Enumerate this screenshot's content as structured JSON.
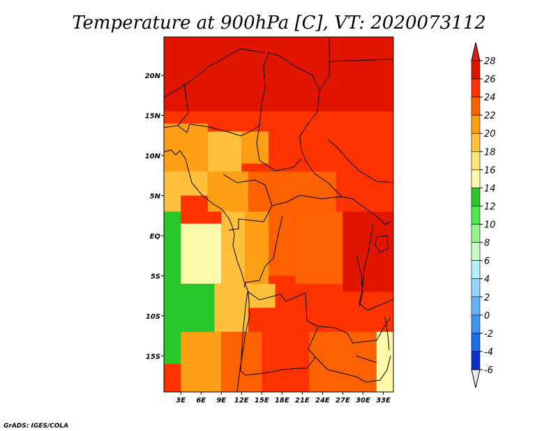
{
  "chart_data": {
    "type": "heatmap",
    "title": "Temperature at 900hPa [C], VT: 2020073112",
    "xlabel": "",
    "ylabel": "",
    "x_ticks": [
      "3E",
      "6E",
      "9E",
      "12E",
      "15E",
      "18E",
      "21E",
      "24E",
      "27E",
      "30E",
      "33E"
    ],
    "x_tick_values": [
      3,
      6,
      9,
      12,
      15,
      18,
      21,
      24,
      27,
      30,
      33
    ],
    "y_ticks": [
      "20N",
      "15N",
      "10N",
      "5N",
      "EQ",
      "5S",
      "10S",
      "15S"
    ],
    "y_tick_values": [
      20,
      15,
      10,
      5,
      0,
      -5,
      -10,
      -15
    ],
    "xlim": [
      0.5,
      34.5
    ],
    "ylim": [
      -19.5,
      24.8
    ],
    "colorbar": {
      "levels": [
        -6,
        -4,
        -2,
        0,
        2,
        4,
        6,
        8,
        10,
        12,
        14,
        16,
        18,
        20,
        22,
        24,
        26,
        28
      ],
      "tick_labels": [
        "28",
        "26",
        "24",
        "22",
        "20",
        "18",
        "16",
        "14",
        "12",
        "10",
        "8",
        "6",
        "4",
        "2",
        "0",
        "-2",
        "-4",
        "-6"
      ],
      "colors": [
        "#1e0a78",
        "#0a32c8",
        "#1e6ee6",
        "#3c96f0",
        "#64b4f5",
        "#96d2fa",
        "#b4f0fa",
        "#c8fac8",
        "#96f58c",
        "#50e650",
        "#28c828",
        "#fffaaa",
        "#ffe878",
        "#ffc03c",
        "#ffa014",
        "#ff6000",
        "#ff3200",
        "#e11400"
      ],
      "under_color": "#e6e6fa",
      "over_color": "#dc1e1e"
    },
    "regions": [
      {
        "lon": [
          0.5,
          34.5
        ],
        "lat": [
          15.5,
          24.8
        ],
        "value": 27
      },
      {
        "lon": [
          0.5,
          34.5
        ],
        "lat": [
          12,
          15.5
        ],
        "value": 25
      },
      {
        "lon": [
          0.5,
          7
        ],
        "lat": [
          8,
          14
        ],
        "value": 21
      },
      {
        "lon": [
          7,
          12
        ],
        "lat": [
          8,
          13
        ],
        "value": 19
      },
      {
        "lon": [
          12,
          16
        ],
        "lat": [
          9,
          13
        ],
        "value": 21
      },
      {
        "lon": [
          16,
          26
        ],
        "lat": [
          8,
          13
        ],
        "value": 24
      },
      {
        "lon": [
          26,
          34.5
        ],
        "lat": [
          7,
          13
        ],
        "value": 25
      },
      {
        "lon": [
          0.5,
          3
        ],
        "lat": [
          3,
          8
        ],
        "value": 18
      },
      {
        "lon": [
          3,
          7
        ],
        "lat": [
          5,
          8
        ],
        "value": 18
      },
      {
        "lon": [
          7,
          13
        ],
        "lat": [
          3,
          8
        ],
        "value": 20
      },
      {
        "lon": [
          13,
          19
        ],
        "lat": [
          3,
          8
        ],
        "value": 22
      },
      {
        "lon": [
          19,
          26
        ],
        "lat": [
          3,
          8
        ],
        "value": 22
      },
      {
        "lon": [
          26,
          34.5
        ],
        "lat": [
          3,
          7
        ],
        "value": 24
      },
      {
        "lon": [
          0.5,
          3
        ],
        "lat": [
          -16,
          3
        ],
        "value": 13
      },
      {
        "lon": [
          3,
          9
        ],
        "lat": [
          -6,
          1.5
        ],
        "value": 15
      },
      {
        "lon": [
          9,
          12.5
        ],
        "lat": [
          -6,
          3
        ],
        "value": 18
      },
      {
        "lon": [
          12.5,
          16
        ],
        "lat": [
          -6,
          3
        ],
        "value": 20
      },
      {
        "lon": [
          16,
          20
        ],
        "lat": [
          -5,
          3
        ],
        "value": 23
      },
      {
        "lon": [
          20,
          27
        ],
        "lat": [
          -6,
          3
        ],
        "value": 23
      },
      {
        "lon": [
          27,
          34.5
        ],
        "lat": [
          -7,
          3
        ],
        "value": 27
      },
      {
        "lon": [
          3,
          8
        ],
        "lat": [
          -12,
          -6
        ],
        "value": 13
      },
      {
        "lon": [
          8,
          13
        ],
        "lat": [
          -12,
          -6
        ],
        "value": 19
      },
      {
        "lon": [
          13,
          17
        ],
        "lat": [
          -9,
          -6
        ],
        "value": 19
      },
      {
        "lon": [
          17,
          24
        ],
        "lat": [
          -12,
          -6
        ],
        "value": 25
      },
      {
        "lon": [
          24,
          34.5
        ],
        "lat": [
          -12,
          -7
        ],
        "value": 25
      },
      {
        "lon": [
          3,
          9
        ],
        "lat": [
          -19.5,
          -12
        ],
        "value": 21
      },
      {
        "lon": [
          9,
          15
        ],
        "lat": [
          -19.5,
          -12
        ],
        "value": 22
      },
      {
        "lon": [
          15,
          22
        ],
        "lat": [
          -19.5,
          -12
        ],
        "value": 24
      },
      {
        "lon": [
          22,
          32
        ],
        "lat": [
          -19.5,
          -12
        ],
        "value": 22
      },
      {
        "lon": [
          32,
          34.5
        ],
        "lat": [
          -19.5,
          -12
        ],
        "value": 15
      }
    ]
  },
  "credit": "GrADS: IGES/COLA"
}
